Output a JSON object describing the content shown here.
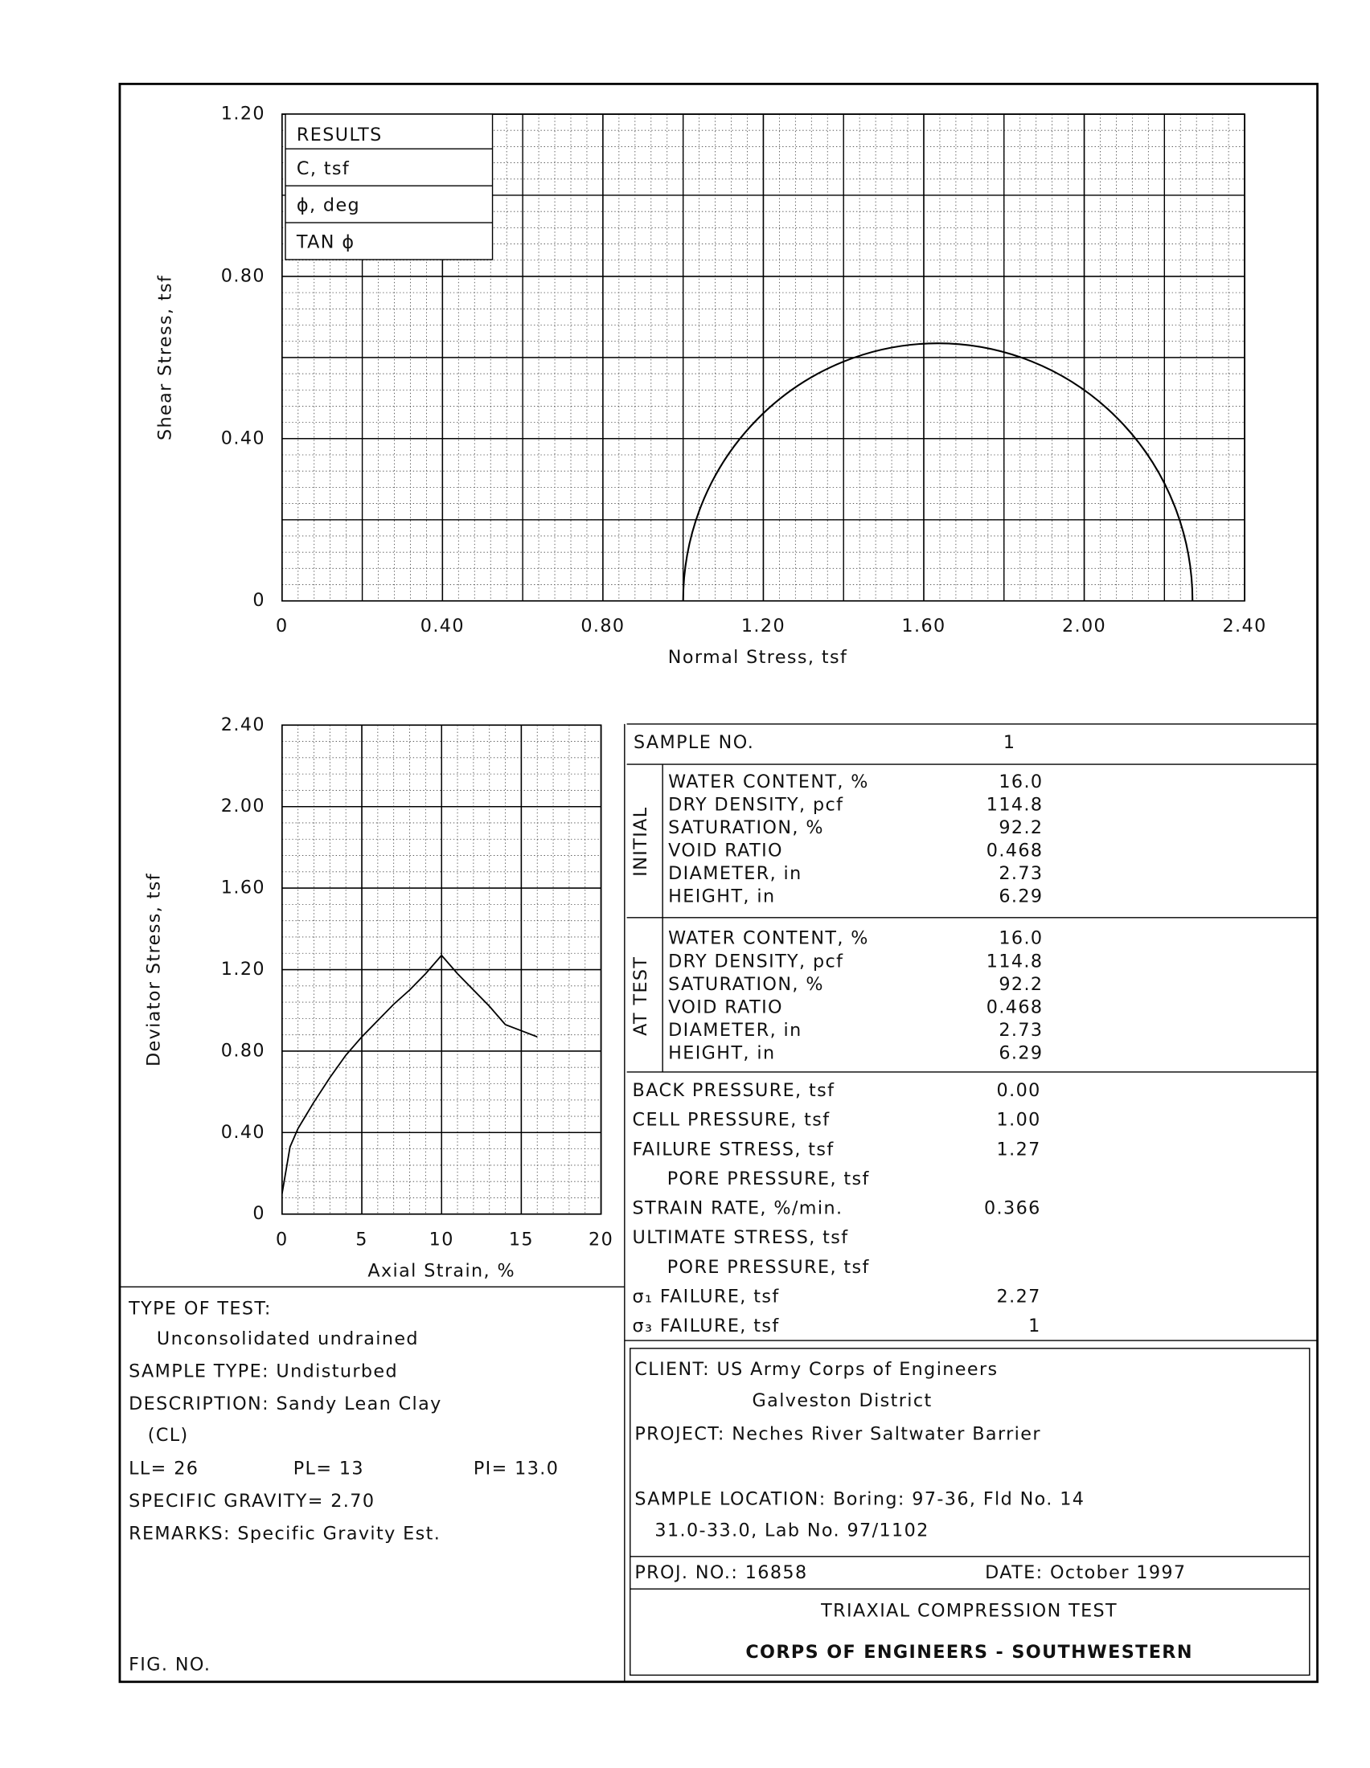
{
  "chart_data": [
    {
      "type": "mohr",
      "x_label": "Normal Stress,  tsf",
      "y_label": "Shear Stress, tsf",
      "xlim": [
        0,
        2.4
      ],
      "ylim": [
        0,
        1.2
      ],
      "xticks": [
        0,
        {
          "value": 0.4,
          "label": "0.40"
        },
        {
          "value": 0.8,
          "label": "0.80"
        },
        {
          "value": 1.2,
          "label": "1.20"
        },
        {
          "value": 1.6,
          "label": "1.60"
        },
        {
          "value": 2.0,
          "label": "2.00"
        },
        {
          "value": 2.4,
          "label": "2.40"
        }
      ],
      "yticks": [
        0,
        {
          "value": 0.4,
          "label": "0.40"
        },
        {
          "value": 0.8,
          "label": "0.80"
        },
        {
          "value": 1.2,
          "label": "1.20"
        }
      ],
      "grid": true,
      "color": "#000000"
    },
    {
      "type": "line",
      "x_label": "Axial Strain,  %",
      "y_label": "Deviator Stress, tsf",
      "xlim": [
        0,
        20
      ],
      "ylim": [
        0,
        2.4
      ],
      "xticks": [
        0,
        5,
        10,
        15,
        20
      ],
      "yticks": [
        0,
        {
          "value": 0.4,
          "label": "0.40"
        },
        {
          "value": 0.8,
          "label": "0.80"
        },
        {
          "value": 1.2,
          "label": "1.20"
        },
        {
          "value": 1.6,
          "label": "1.60"
        },
        {
          "value": 2.0,
          "label": "2.00"
        },
        {
          "value": 2.4,
          "label": "2.40"
        }
      ],
      "x": [
        0,
        0.5,
        1,
        2,
        3,
        4,
        5,
        6,
        7,
        8,
        9,
        10,
        11,
        12,
        13,
        14,
        15,
        16
      ],
      "values": [
        0.1,
        0.33,
        0.42,
        0.55,
        0.67,
        0.78,
        0.87,
        0.95,
        1.03,
        1.1,
        1.18,
        1.27,
        1.18,
        1.1,
        1.02,
        0.93,
        0.9,
        0.87
      ],
      "grid": true,
      "color": "#000000"
    }
  ],
  "results": {
    "title": "RESULTS",
    "rows": [
      "C, tsf",
      "ϕ, deg",
      "TAN ϕ"
    ]
  },
  "sample_table": {
    "sample_no_label": "SAMPLE NO.",
    "sample_no": "1",
    "initial": {
      "label": "INITIAL",
      "rows": [
        [
          "WATER CONTENT, %",
          "16.0"
        ],
        [
          "DRY DENSITY, pcf",
          "114.8"
        ],
        [
          "SATURATION, %",
          "92.2"
        ],
        [
          "VOID RATIO",
          "0.468"
        ],
        [
          "DIAMETER, in",
          "2.73"
        ],
        [
          "HEIGHT, in",
          "6.29"
        ]
      ]
    },
    "at_test": {
      "label": "AT TEST",
      "rows": [
        [
          "WATER CONTENT, %",
          "16.0"
        ],
        [
          "DRY DENSITY, pcf",
          "114.8"
        ],
        [
          "SATURATION, %",
          "92.2"
        ],
        [
          "VOID RATIO",
          "0.468"
        ],
        [
          "DIAMETER, in",
          "2.73"
        ],
        [
          "HEIGHT, in",
          "6.29"
        ]
      ]
    },
    "rows": [
      [
        "BACK PRESSURE, tsf",
        "0.00"
      ],
      [
        "CELL PRESSURE, tsf",
        "1.00"
      ],
      [
        "FAILURE STRESS, tsf",
        "1.27"
      ],
      [
        "PORE PRESSURE, tsf"
      ],
      [
        "STRAIN RATE, %/min.",
        "0.366"
      ],
      [
        "ULTIMATE STRESS, tsf"
      ],
      [
        "PORE PRESSURE, tsf"
      ],
      [
        "σ₁ FAILURE, tsf",
        2.27
      ],
      [
        "σ₃ FAILURE, tsf",
        1
      ]
    ]
  },
  "specimen": {
    "type_of_test_label": "TYPE OF TEST:",
    "type_of_test": "Unconsolidated undrained",
    "sample_type": "SAMPLE TYPE: Undisturbed",
    "description": "DESCRIPTION: Sandy Lean Clay",
    "description_cont": "(CL)",
    "ll": "LL= 26",
    "pl": "PL= 13",
    "pi": "PI= 13.0",
    "specific_gravity": "SPECIFIC GRAVITY= 2.70",
    "remarks": "REMARKS: Specific Gravity Est.",
    "fig_no": "FIG. NO."
  },
  "project": {
    "client": "CLIENT: US Army Corps of Engineers",
    "client_cont": "Galveston District",
    "project": "PROJECT: Neches River Saltwater Barrier",
    "location": "SAMPLE LOCATION: Boring: 97-36, Fld No. 14",
    "location_cont": "31.0-33.0, Lab No. 97/1102",
    "proj_no": "PROJ. NO.: 16858",
    "date": "DATE: October 1997",
    "test_title": "TRIAXIAL COMPRESSION TEST",
    "organization": "CORPS OF ENGINEERS - SOUTHWESTERN"
  }
}
